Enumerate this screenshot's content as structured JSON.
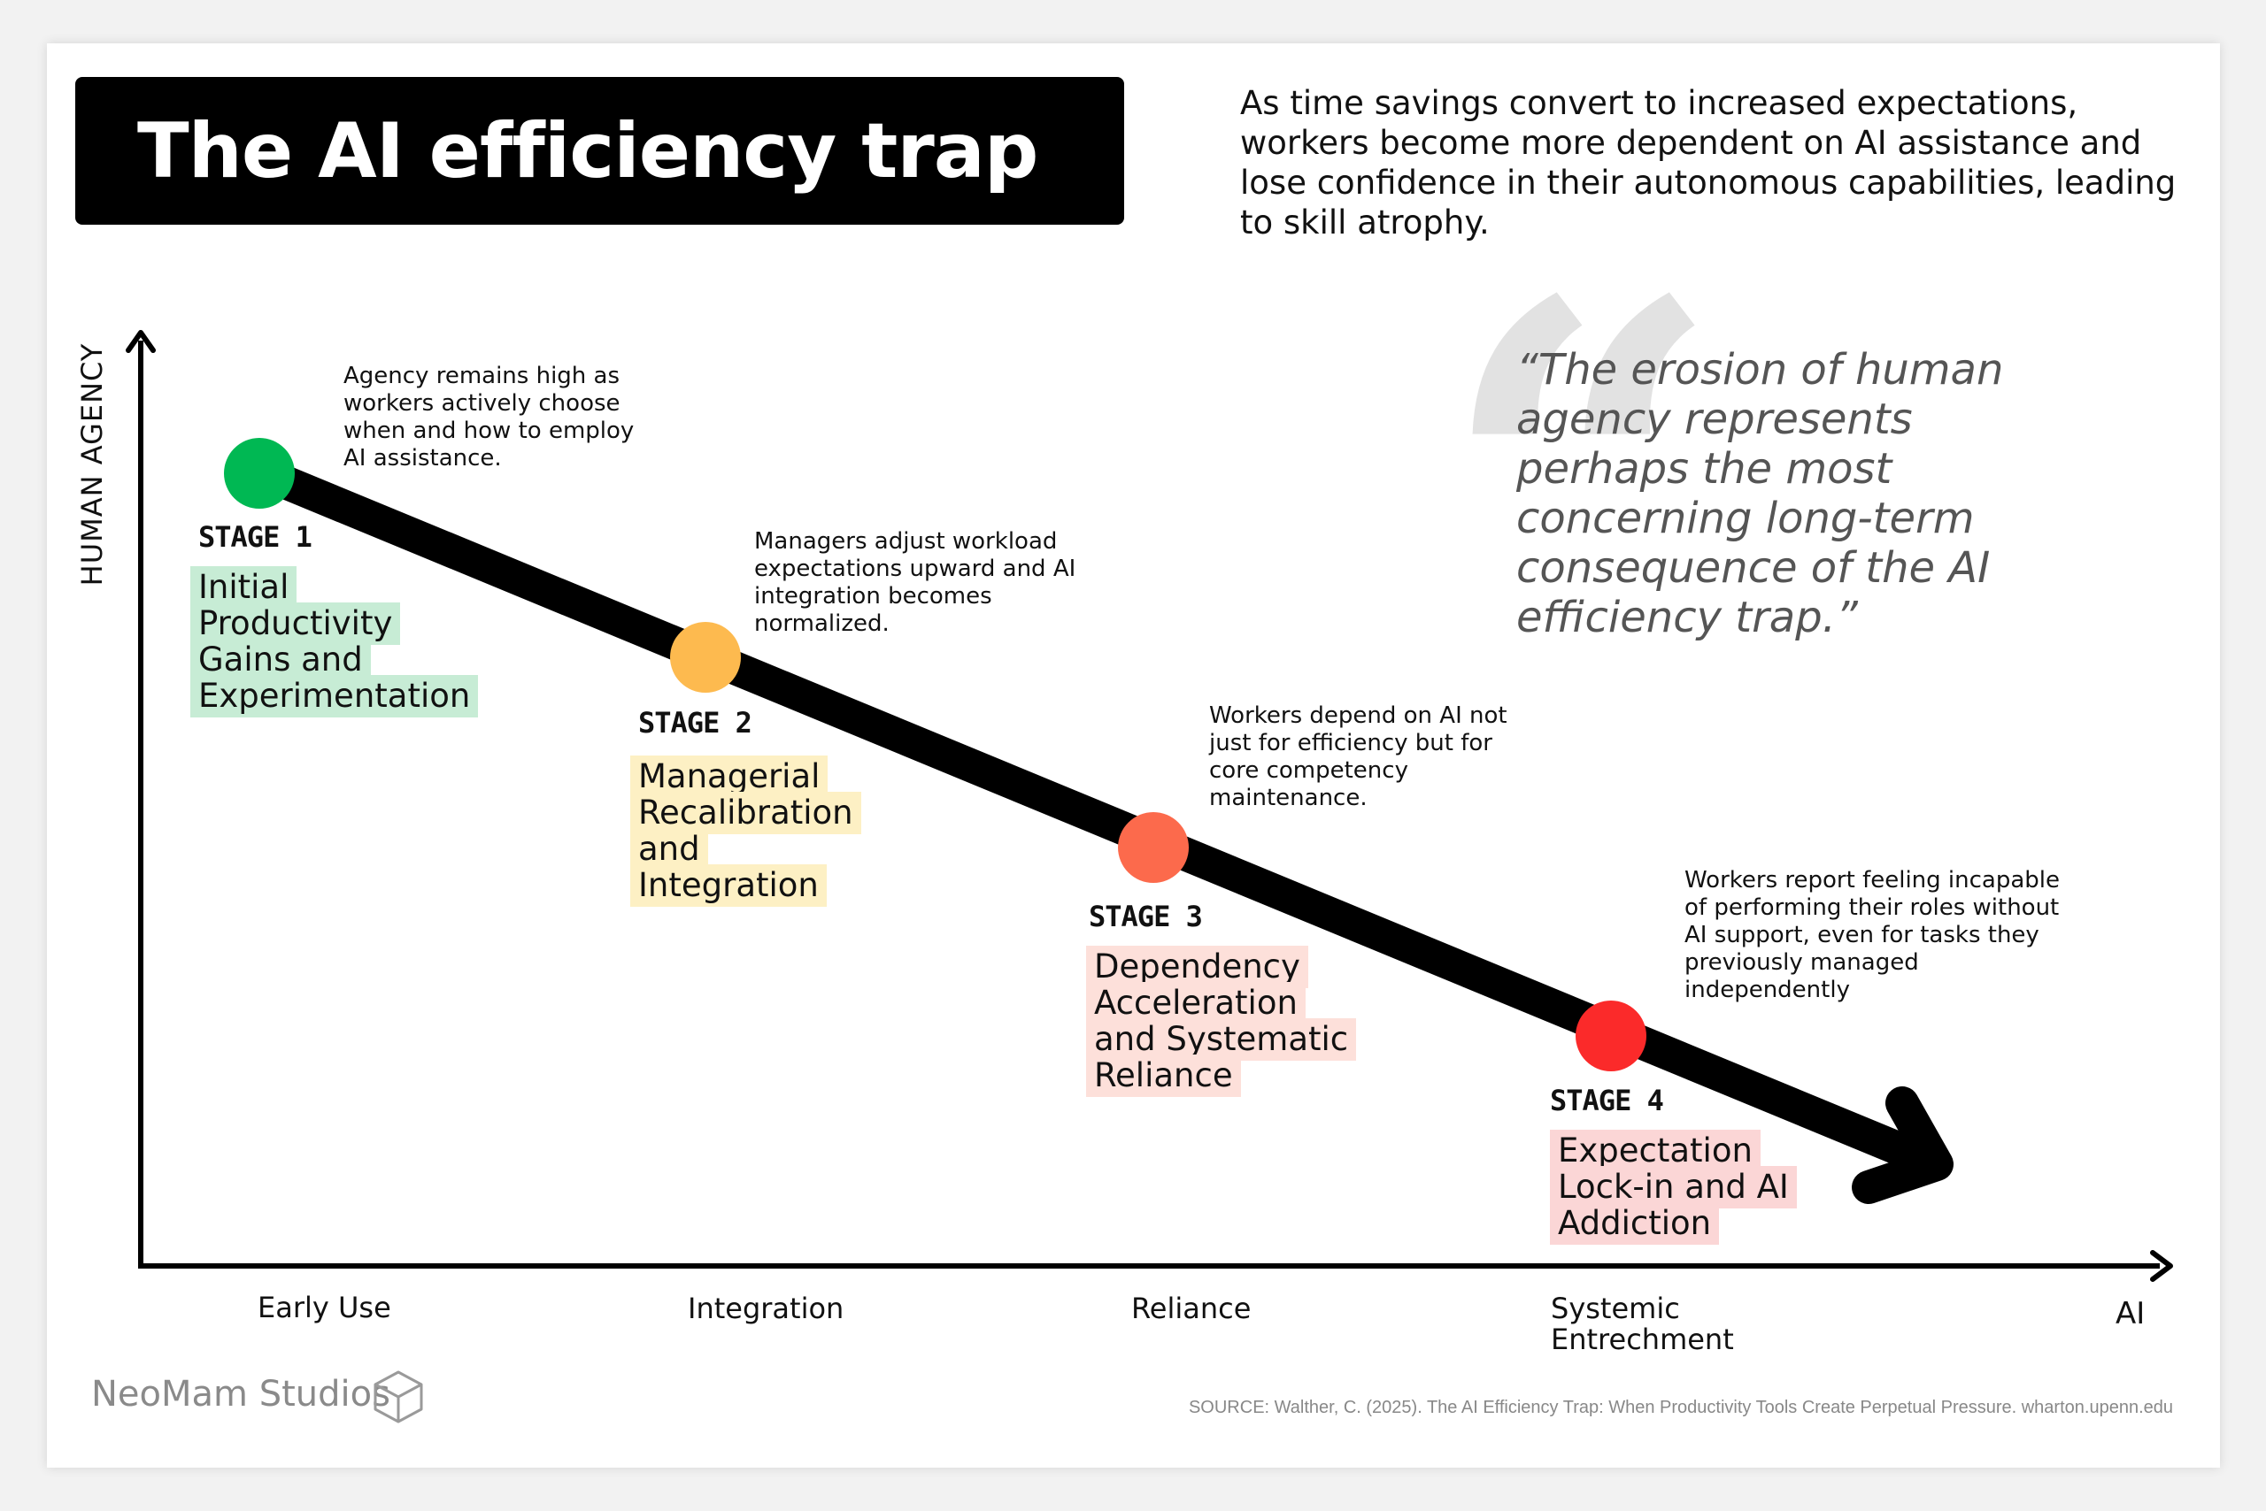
{
  "header": {
    "title": "The AI efficiency trap",
    "intro": "As time savings convert to increased expectations, workers become more dependent on AI assistance and lose confidence in their autonomous capabilities, leading to skill atrophy."
  },
  "quote": {
    "text": "“The erosion of human agency represents perhaps the most concerning long-term consequence of the AI efficiency trap.”"
  },
  "axes": {
    "y_label": "HUMAN AGENCY",
    "x_end_label": "AI",
    "x_ticks": [
      "Early Use",
      "Integration",
      "Reliance",
      "Systemic\nEntrechment"
    ]
  },
  "stages": [
    {
      "label": "STAGE 1",
      "name": "Initial Productivity Gains and Experimentation",
      "note": "Agency remains high as workers actively choose when and how to employ AI assistance.",
      "color": "#00b853"
    },
    {
      "label": "STAGE 2",
      "name": "Managerial Recalibration and Integration",
      "note": "Managers adjust workload expectations upward and AI integration becomes normalized.",
      "color": "#fdba4f"
    },
    {
      "label": "STAGE 3",
      "name": "Dependency Acceleration and Systematic Reliance",
      "note": "Workers depend on AI not just for efficiency but for core competency maintenance.",
      "color": "#fc6a4c"
    },
    {
      "label": "STAGE 4",
      "name": "Expectation Lock-in and AI Addiction",
      "note": "Workers report feeling incapable of performing their roles without AI support, even for tasks they previously managed independently",
      "color": "#fb2a2a"
    }
  ],
  "footer": {
    "brand": "NeoMam Studios",
    "source": "SOURCE: Walther, C. (2025). The AI Efficiency Trap: When Productivity Tools Create Perpetual Pressure. wharton.upenn.edu"
  }
}
